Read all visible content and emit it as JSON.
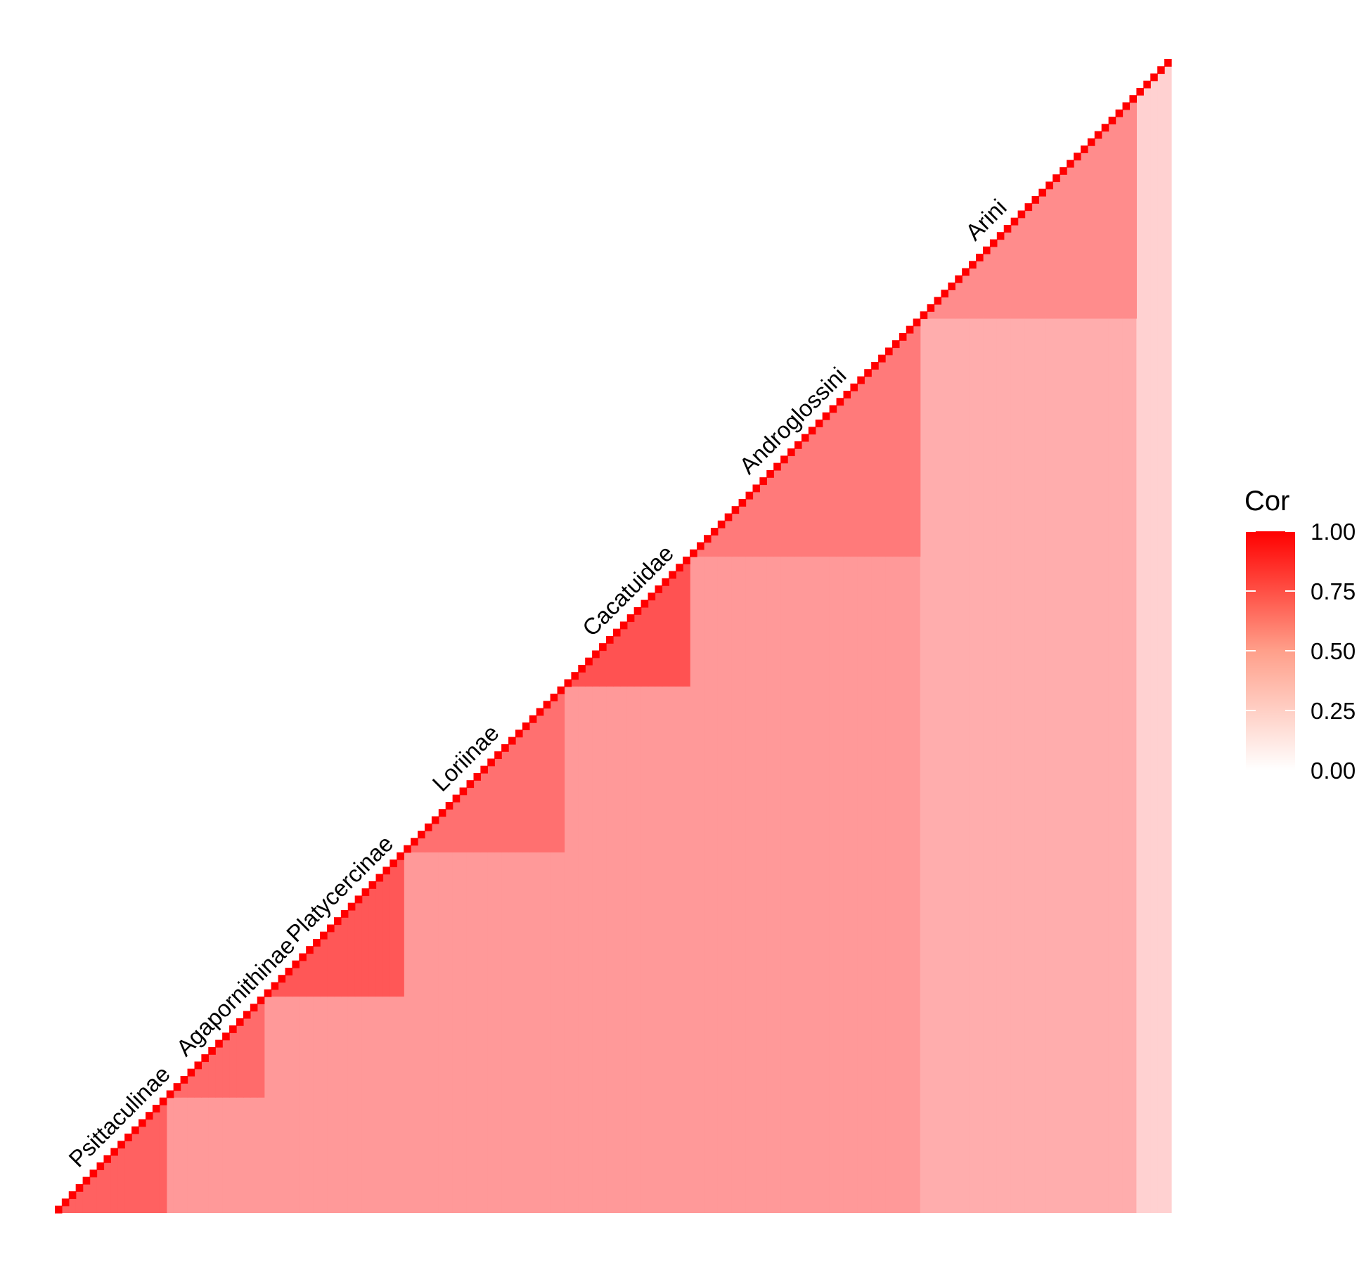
{
  "chart_data": {
    "type": "heatmap",
    "title": "",
    "layout": "lower-right triangular correlation matrix",
    "n_taxa": 160,
    "color_scale": {
      "low": "#ffffff",
      "high": "#ff0000",
      "min": 0.0,
      "max": 1.0
    },
    "diagonal_value": 1.0,
    "background_value": 0.4,
    "clades": [
      {
        "name": "Psittaculinae",
        "start": 0,
        "end": 16,
        "value": 0.62
      },
      {
        "name": "Agapornithinae",
        "start": 16,
        "end": 30,
        "value": 0.58
      },
      {
        "name": "Platycercinae",
        "start": 30,
        "end": 50,
        "value": 0.66
      },
      {
        "name": "Loriinae",
        "start": 50,
        "end": 73,
        "value": 0.56
      },
      {
        "name": "Cacatuidae",
        "start": 73,
        "end": 91,
        "value": 0.68
      },
      {
        "name": "Androglossini",
        "start": 91,
        "end": 124,
        "value": 0.52
      },
      {
        "name": "Arini",
        "start": 124,
        "end": 155,
        "value": 0.45
      }
    ],
    "legend": {
      "title": "Cor",
      "ticks": [
        "1.00",
        "0.75",
        "0.50",
        "0.25",
        "0.00"
      ],
      "tick_values": [
        1.0,
        0.75,
        0.5,
        0.25,
        0.0
      ]
    }
  }
}
